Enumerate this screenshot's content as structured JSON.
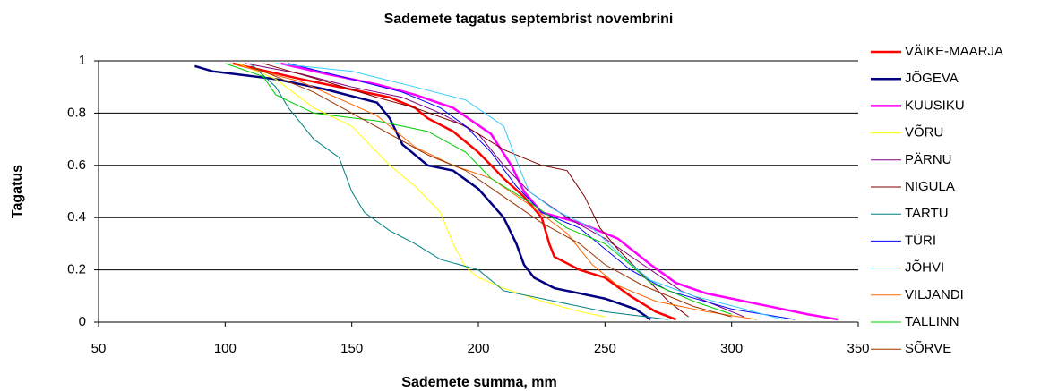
{
  "chart_data": {
    "type": "line",
    "title": "Sademete tagatus septembrist novembrini",
    "x_label": "Sademete summa, mm",
    "y_label": "Tagatus",
    "xlim": [
      50,
      350
    ],
    "xticks": [
      50,
      100,
      150,
      200,
      250,
      300,
      350
    ],
    "ylim": [
      0,
      1
    ],
    "yticks": [
      0,
      0.2,
      0.4,
      0.6,
      0.8,
      1
    ],
    "grid": true,
    "legend": "right",
    "series": [
      {
        "name": "VÄIKE-MAARJA",
        "color": "#ff0000",
        "line_width": 2.5,
        "x": [
          103,
          130,
          150,
          165,
          175,
          180,
          190,
          200,
          210,
          218,
          225,
          228,
          230,
          240,
          250,
          260,
          270,
          278
        ],
        "values": [
          0.99,
          0.93,
          0.89,
          0.86,
          0.82,
          0.78,
          0.73,
          0.65,
          0.55,
          0.48,
          0.4,
          0.3,
          0.25,
          0.2,
          0.17,
          0.1,
          0.04,
          0.01
        ]
      },
      {
        "name": "JÕGEVA",
        "color": "#000080",
        "line_width": 2.5,
        "x": [
          88,
          95,
          120,
          140,
          160,
          165,
          170,
          180,
          190,
          200,
          210,
          215,
          218,
          222,
          230,
          250,
          262,
          268
        ],
        "values": [
          0.98,
          0.96,
          0.93,
          0.89,
          0.84,
          0.78,
          0.68,
          0.6,
          0.58,
          0.51,
          0.4,
          0.3,
          0.22,
          0.17,
          0.13,
          0.09,
          0.05,
          0.01
        ]
      },
      {
        "name": "KUUSIKU",
        "color": "#ff00ff",
        "line_width": 2.5,
        "x": [
          122,
          140,
          160,
          175,
          190,
          205,
          213,
          218,
          225,
          240,
          255,
          268,
          278,
          290,
          310,
          330,
          342
        ],
        "values": [
          0.99,
          0.95,
          0.91,
          0.87,
          0.82,
          0.72,
          0.6,
          0.5,
          0.42,
          0.38,
          0.32,
          0.22,
          0.15,
          0.11,
          0.07,
          0.03,
          0.01
        ]
      },
      {
        "name": "VÕRU",
        "color": "#ffff00",
        "line_width": 1,
        "x": [
          105,
          120,
          135,
          150,
          165,
          175,
          185,
          190,
          195,
          200,
          210,
          225,
          240,
          250
        ],
        "values": [
          0.99,
          0.93,
          0.82,
          0.75,
          0.6,
          0.52,
          0.42,
          0.3,
          0.21,
          0.17,
          0.13,
          0.08,
          0.04,
          0.02
        ]
      },
      {
        "name": "PÄRNU",
        "color": "#800080",
        "line_width": 1,
        "x": [
          108,
          130,
          150,
          170,
          185,
          200,
          210,
          220,
          235,
          250,
          265,
          280,
          295,
          305
        ],
        "values": [
          0.99,
          0.95,
          0.9,
          0.86,
          0.8,
          0.72,
          0.6,
          0.5,
          0.4,
          0.32,
          0.22,
          0.12,
          0.06,
          0.02
        ]
      },
      {
        "name": "NIGULA",
        "color": "#800000",
        "line_width": 1,
        "x": [
          115,
          140,
          160,
          175,
          195,
          210,
          225,
          235,
          242,
          248,
          255,
          265,
          275,
          283
        ],
        "values": [
          0.99,
          0.92,
          0.86,
          0.82,
          0.75,
          0.66,
          0.6,
          0.58,
          0.48,
          0.36,
          0.28,
          0.18,
          0.08,
          0.02
        ]
      },
      {
        "name": "TARTU",
        "color": "#008080",
        "line_width": 1,
        "x": [
          110,
          120,
          125,
          135,
          145,
          150,
          155,
          165,
          175,
          185,
          200,
          210,
          230,
          250,
          275
        ],
        "values": [
          0.99,
          0.9,
          0.82,
          0.7,
          0.63,
          0.5,
          0.42,
          0.35,
          0.3,
          0.24,
          0.2,
          0.12,
          0.08,
          0.04,
          0.01
        ]
      },
      {
        "name": "TÜRI",
        "color": "#0000ff",
        "line_width": 1,
        "x": [
          125,
          150,
          170,
          185,
          195,
          205,
          215,
          225,
          240,
          250,
          260,
          275,
          300,
          325
        ],
        "values": [
          0.99,
          0.93,
          0.88,
          0.82,
          0.75,
          0.65,
          0.52,
          0.42,
          0.36,
          0.28,
          0.2,
          0.12,
          0.05,
          0.01
        ]
      },
      {
        "name": "JÕHVI",
        "color": "#33ccff",
        "line_width": 1,
        "x": [
          120,
          150,
          175,
          195,
          210,
          215,
          220,
          230,
          245,
          258,
          268,
          285,
          305,
          320
        ],
        "values": [
          0.99,
          0.96,
          0.9,
          0.85,
          0.75,
          0.62,
          0.5,
          0.43,
          0.36,
          0.24,
          0.16,
          0.1,
          0.05,
          0.01
        ]
      },
      {
        "name": "VILJANDI",
        "color": "#ff6600",
        "line_width": 1,
        "x": [
          102,
          130,
          160,
          175,
          190,
          205,
          220,
          235,
          245,
          255,
          270,
          290,
          310
        ],
        "values": [
          0.99,
          0.92,
          0.79,
          0.67,
          0.6,
          0.55,
          0.45,
          0.34,
          0.22,
          0.14,
          0.08,
          0.04,
          0.01
        ]
      },
      {
        "name": "TALLINN",
        "color": "#00cc00",
        "line_width": 1,
        "x": [
          100,
          115,
          120,
          135,
          160,
          180,
          195,
          205,
          220,
          235,
          250,
          260,
          268,
          285,
          300
        ],
        "values": [
          0.99,
          0.94,
          0.87,
          0.8,
          0.77,
          0.73,
          0.65,
          0.55,
          0.46,
          0.36,
          0.3,
          0.22,
          0.15,
          0.08,
          0.03
        ]
      },
      {
        "name": "SÕRVE",
        "color": "#993300",
        "line_width": 1,
        "x": [
          110,
          135,
          150,
          165,
          180,
          195,
          210,
          225,
          240,
          250,
          265,
          285,
          300
        ],
        "values": [
          0.98,
          0.88,
          0.8,
          0.72,
          0.64,
          0.58,
          0.48,
          0.38,
          0.3,
          0.22,
          0.14,
          0.06,
          0.02
        ]
      }
    ]
  }
}
